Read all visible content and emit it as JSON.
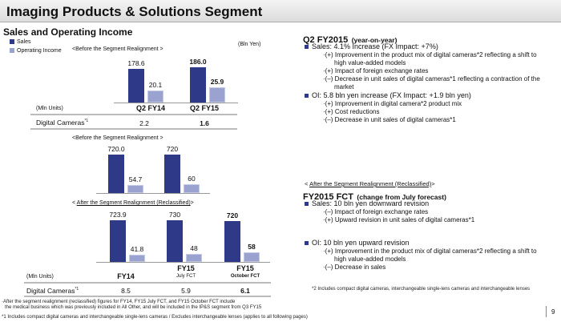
{
  "header": {
    "title": "Imaging Products & Solutions Segment",
    "section": "Sales and Operating Income"
  },
  "colors": {
    "sales": "#2e3a87",
    "oi": "#9aa3cf"
  },
  "legend": {
    "sales": "Sales",
    "oi": "Operating Income"
  },
  "unit": "(Bln Yen)",
  "chart_data": [
    {
      "type": "bar",
      "title": "<Before the Segment Realignment >",
      "categories": [
        "Q2 FY14",
        "Q2 FY15"
      ],
      "series": [
        {
          "name": "Sales",
          "values": [
            178.6,
            186.0
          ],
          "labels": [
            "178.6",
            "186.0"
          ]
        },
        {
          "name": "Operating Income",
          "values": [
            20.1,
            25.9
          ],
          "labels": [
            "20.1",
            "25.9"
          ]
        }
      ]
    },
    {
      "type": "bar",
      "title": "<Before the Segment Realignment >",
      "categories": [
        "",
        ""
      ],
      "series": [
        {
          "name": "Sales",
          "values": [
            720.0,
            720
          ],
          "labels": [
            "720.0",
            "720"
          ]
        },
        {
          "name": "Operating Income",
          "values": [
            54.7,
            60
          ],
          "labels": [
            "54.7",
            "60"
          ]
        }
      ]
    },
    {
      "type": "bar",
      "title_prefix": "< ",
      "title": "After the Segment Realignment (Reclassified)",
      "title_suffix": ">",
      "categories": [
        "FY14",
        "FY15",
        "FY15"
      ],
      "category_sub": [
        "",
        "July FCT",
        "October FCT"
      ],
      "series": [
        {
          "name": "Sales",
          "values": [
            723.9,
            730,
            720
          ],
          "labels": [
            "723.9",
            "730",
            "720"
          ]
        },
        {
          "name": "Operating Income",
          "values": [
            41.8,
            48,
            58
          ],
          "labels": [
            "41.8",
            "48",
            "58"
          ]
        }
      ]
    }
  ],
  "table1": {
    "unit": "(Mln Units)",
    "row_label": "Digital Cameras",
    "sup": "*1",
    "values": [
      "2.2",
      "1.6"
    ]
  },
  "table2": {
    "unit": "(Mln Units)",
    "row_label": "Digital Cameras",
    "sup": "*1",
    "values": [
      "8.5",
      "5.9",
      "6.1"
    ]
  },
  "footnotes": {
    "a1": "·After the segment realignment (reclassified) figures for FY14, FY15 July FCT, and FY15 October FCT include",
    "a2": "the medical business which was previously included in All Other, and will be included in the IP&S segment from Q3 FY15",
    "n1": "*1 Includes compact digital cameras and interchangeable single-lens cameras / Excludes interchangeable lenses (applies to all following pages)",
    "n2": "*2 Includes compact digital cameras, interchangeable single-lens cameras and interchangeable lenses"
  },
  "right": {
    "q2_heading": "Q2 FY2015",
    "q2_heading_sub": "(year-on-year)",
    "q2_sales": "Sales: 4.1% Increase (FX Impact:  +7%)",
    "q2_sales_items": [
      "·(+) Improvement in the product mix of digital cameras*2 reflecting a shift to",
      "high value-added models",
      "·(+) Impact of foreign exchange rates",
      "·(–) Decrease in unit sales of digital cameras*1 reflecting a contraction of the",
      "market"
    ],
    "q2_oi": "OI: 5.8 bln yen increase (FX Impact:  +1.9 bln yen)",
    "q2_oi_items": [
      "·(+)  Improvement in digital camera*2 product mix",
      "·(+)  Cost reductions",
      "·(–)  Decrease in unit sales of digital cameras*1"
    ],
    "fct_tag_prefix": "< ",
    "fct_tag": "After the Segment Realignment (Reclassified)",
    "fct_tag_suffix": ">",
    "fct_heading": "FY2015 FCT",
    "fct_heading_sub": "(change from July forecast)",
    "fct_sales": "Sales: 10 bln yen downward revision",
    "fct_sales_items": [
      "·(–)  Impact of foreign exchange rates",
      "·(+)  Upward revision in unit sales of digital cameras*1"
    ],
    "fct_oi": "OI: 10 bln yen upward revision",
    "fct_oi_items": [
      "·(+)  Improvement in the product mix of digital cameras*2 reflecting a shift to",
      "high value-added models",
      "·(–)  Decrease in sales"
    ]
  },
  "page_number": "9"
}
